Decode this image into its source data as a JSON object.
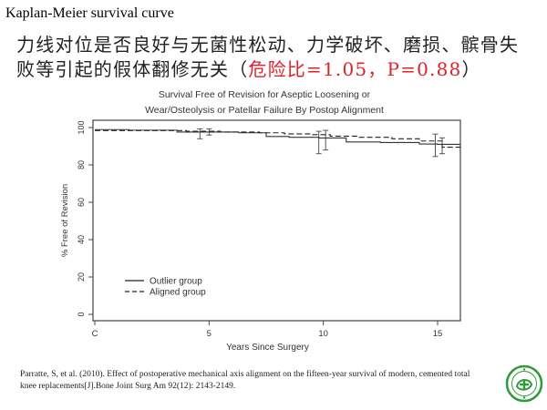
{
  "slide": {
    "title": "Kaplan-Meier survival curve",
    "subtitle_main": "力线对位是否良好与无菌性松动、力学破坏、磨损、髌骨失败等引起的假体翻修无关",
    "subtitle_paren_open": "（",
    "subtitle_highlight": "危险比=1.05，P=0.88",
    "subtitle_paren_close": "）",
    "citation": "Parratte, S, et al. (2010). Effect of postoperative mechanical axis alignment on the fifteen-year survival of modern, cemented total knee replacements[J].Bone Joint Surg Am 92(12): 2143-2149.",
    "logo_icon": "hospital-seal-icon",
    "logo_color": "#2e9a3c",
    "highlight_color": "#e0202a"
  },
  "chart_data": {
    "type": "line",
    "title_line1": "Survival Free of Revision for Aseptic Loosening or",
    "title_line2": "Wear/Osteolysis or Patellar Failure By Postop Alignment",
    "xlabel": "Years Since Surgery",
    "ylabel": "% Free of Revision",
    "xlim": [
      0,
      16
    ],
    "ylim": [
      -2,
      103
    ],
    "xticks": [
      0,
      5,
      10,
      15
    ],
    "xtick_labels": [
      "C",
      "5",
      "10",
      "15"
    ],
    "yticks": [
      0,
      20,
      40,
      60,
      80,
      100
    ],
    "ytick_labels": [
      "0",
      "20",
      "40",
      "60",
      "80",
      "100"
    ],
    "legend_position": "bottom-left",
    "series": [
      {
        "name": "Outlier group",
        "style": "solid",
        "x": [
          0,
          1.5,
          3.6,
          5.0,
          6.3,
          7.5,
          8.5,
          9.8,
          11.0,
          12.5,
          14.2,
          15.0,
          16.0
        ],
        "y": [
          98.9,
          98.6,
          97.6,
          97.6,
          97.2,
          95.2,
          94.8,
          94.4,
          92.3,
          92.0,
          91.2,
          91.0,
          91.0
        ]
      },
      {
        "name": "Aligned group",
        "style": "dashed",
        "x": [
          0,
          2.0,
          4.0,
          5.5,
          7.2,
          8.3,
          9.5,
          10.3,
          11.5,
          13.0,
          14.2,
          15.2,
          16.0
        ],
        "y": [
          98.4,
          98.4,
          98.0,
          97.6,
          97.2,
          96.6,
          96.2,
          95.4,
          94.8,
          94.0,
          92.8,
          89.5,
          89.5
        ]
      }
    ],
    "error_bars": [
      {
        "x": 4.6,
        "low": 94.0,
        "high": 99.3
      },
      {
        "x": 5.0,
        "low": 96.0,
        "high": 99.3
      },
      {
        "x": 9.8,
        "low": 86.0,
        "high": 98.0
      },
      {
        "x": 10.1,
        "low": 88.0,
        "high": 98.5
      },
      {
        "x": 14.9,
        "low": 84.5,
        "high": 96.5
      },
      {
        "x": 15.2,
        "low": 86.0,
        "high": 94.5
      }
    ]
  }
}
